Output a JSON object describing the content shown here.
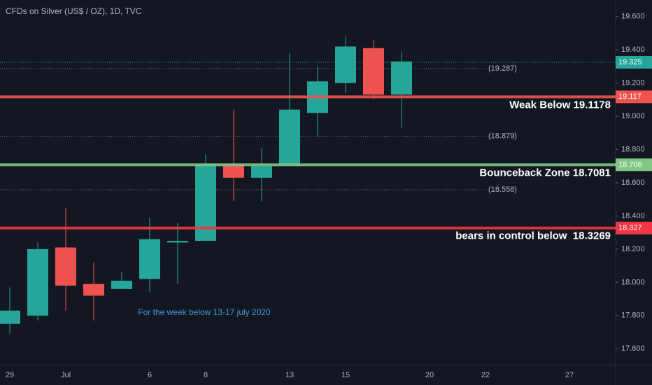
{
  "chart_data": {
    "type": "candlestick",
    "title": "CFDs on Silver (US$ / OZ), 1D, TVC",
    "annotation": "For the week below 13-17 july 2020",
    "categories": [
      "29",
      null,
      "Jul",
      null,
      null,
      "6",
      null,
      "8",
      null,
      null,
      "13",
      null,
      "15",
      null,
      null,
      "20",
      null,
      "22",
      null,
      null,
      "27",
      null
    ],
    "open": [
      17.75,
      17.8,
      18.21,
      17.99,
      17.96,
      18.02,
      18.24,
      18.25,
      18.71,
      18.63,
      18.71,
      19.02,
      19.2,
      19.41,
      19.13,
      null,
      null,
      null,
      null,
      null,
      null,
      null
    ],
    "high": [
      17.97,
      18.24,
      18.45,
      18.12,
      18.06,
      18.39,
      18.36,
      18.77,
      19.04,
      18.81,
      19.38,
      19.3,
      19.48,
      19.46,
      19.39,
      null,
      null,
      null,
      null,
      null,
      null,
      null
    ],
    "low": [
      17.69,
      17.77,
      17.83,
      17.77,
      17.96,
      17.94,
      17.99,
      18.25,
      18.49,
      18.49,
      18.71,
      18.88,
      19.14,
      19.1,
      18.93,
      null,
      null,
      null,
      null,
      null,
      null,
      null
    ],
    "close": [
      17.83,
      18.2,
      17.98,
      17.92,
      18.01,
      18.26,
      18.25,
      18.71,
      18.63,
      18.7,
      19.04,
      19.21,
      19.42,
      19.13,
      19.33,
      null,
      null,
      null,
      null,
      null,
      null,
      null
    ],
    "up_color": "#26a69a",
    "down_color": "#ef5350",
    "ylim": [
      17.5,
      19.7
    ],
    "yticks": [
      {
        "value": 17.6,
        "label": "17.600"
      },
      {
        "value": 17.8,
        "label": "17.800"
      },
      {
        "value": 18.0,
        "label": "18.000"
      },
      {
        "value": 18.2,
        "label": "18.200"
      },
      {
        "value": 18.4,
        "label": "18.400"
      },
      {
        "value": 18.6,
        "label": "18.600"
      },
      {
        "value": 18.8,
        "label": "18.800"
      },
      {
        "value": 19.0,
        "label": "19.000"
      },
      {
        "value": 19.2,
        "label": "19.200"
      },
      {
        "value": 19.4,
        "label": "19.400"
      },
      {
        "value": 19.6,
        "label": "19.600"
      }
    ],
    "levels": [
      {
        "value": 19.117,
        "label": "Weak Below 19.1178",
        "color": "#ef5350"
      },
      {
        "value": 18.708,
        "label": "Bounceback Zone 18.7081",
        "color": "#81c784"
      },
      {
        "value": 18.327,
        "label": "bears in control below  18.3269",
        "color": "#f23645"
      }
    ],
    "dotted_levels": [
      {
        "value": 19.287,
        "label": "(19.287)"
      },
      {
        "value": 18.879,
        "label": "(18.879)"
      },
      {
        "value": 18.558,
        "label": "(18.558)"
      }
    ],
    "last_price": 19.325,
    "last_price_color": "#26a69a"
  }
}
